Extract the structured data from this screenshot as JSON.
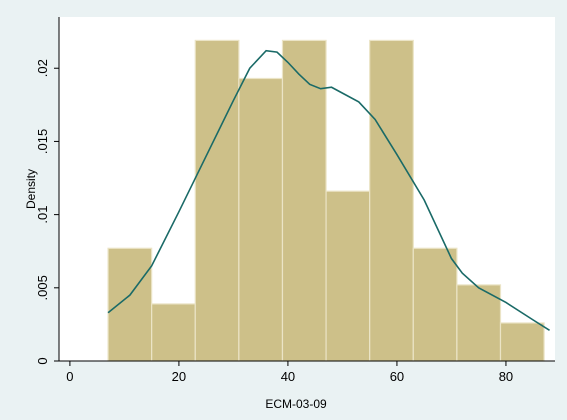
{
  "chart_data": {
    "type": "bar",
    "xlabel": "ECM-03-09",
    "ylabel": "Density",
    "xlim": [
      -2,
      89
    ],
    "ylim": [
      0,
      0.0235
    ],
    "xticks": [
      0,
      20,
      40,
      60,
      80
    ],
    "yticks": [
      0,
      0.005,
      0.01,
      0.015,
      0.02
    ],
    "xtick_labels": [
      "0",
      "20",
      "40",
      "60",
      "80"
    ],
    "ytick_labels": [
      "0",
      ".005",
      ".01",
      ".015",
      ".02"
    ],
    "grid": false,
    "bins": [
      {
        "x0": 7,
        "x1": 15,
        "value": 0.0077
      },
      {
        "x0": 15,
        "x1": 23,
        "value": 0.0039
      },
      {
        "x0": 23,
        "x1": 31,
        "value": 0.0219
      },
      {
        "x0": 31,
        "x1": 39,
        "value": 0.0193
      },
      {
        "x0": 39,
        "x1": 47,
        "value": 0.0219
      },
      {
        "x0": 47,
        "x1": 55,
        "value": 0.0116
      },
      {
        "x0": 55,
        "x1": 63,
        "value": 0.0219
      },
      {
        "x0": 63,
        "x1": 71,
        "value": 0.0077
      },
      {
        "x0": 71,
        "x1": 79,
        "value": 0.0052
      },
      {
        "x0": 79,
        "x1": 87,
        "value": 0.0026
      }
    ],
    "density_curve": {
      "x": [
        7,
        11,
        15,
        20,
        25,
        30,
        33,
        36,
        38,
        40,
        42,
        44,
        46,
        48,
        50,
        53,
        56,
        60,
        65,
        70,
        72,
        75,
        80,
        85,
        88
      ],
      "y": [
        0.0033,
        0.0045,
        0.0065,
        0.0102,
        0.014,
        0.0178,
        0.02,
        0.0212,
        0.0211,
        0.0204,
        0.0196,
        0.0189,
        0.0186,
        0.0187,
        0.0183,
        0.0177,
        0.0165,
        0.0141,
        0.011,
        0.007,
        0.006,
        0.005,
        0.004,
        0.0028,
        0.0021
      ]
    },
    "colors": {
      "background": "#eaf2f3",
      "plot_area": "#ffffff",
      "bar_fill": "#cdc089",
      "bar_stroke": "#ebe4c6",
      "curve": "#1a6a67",
      "axis": "#000000"
    }
  }
}
